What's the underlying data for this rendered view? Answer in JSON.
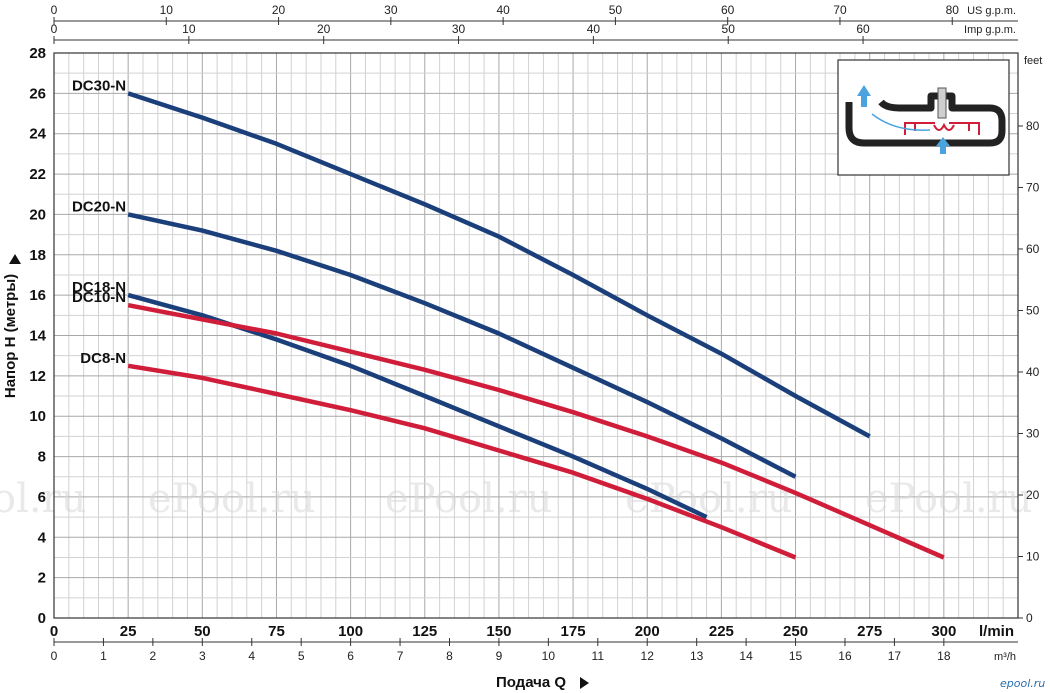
{
  "chart_data": {
    "type": "line",
    "xlabel": "Подача Q",
    "ylabel": "Напор H (метры)",
    "x_unit": "l/min",
    "xlim": [
      0,
      325
    ],
    "ylim": [
      0,
      28
    ],
    "x_ticks": [
      0,
      25,
      50,
      75,
      100,
      125,
      150,
      175,
      200,
      225,
      250,
      275,
      300
    ],
    "y_ticks": [
      0,
      2,
      4,
      6,
      8,
      10,
      12,
      14,
      16,
      18,
      20,
      22,
      24,
      26,
      28
    ],
    "grid": true,
    "secondary_axes": {
      "us_gpm": {
        "unit": "US g.p.m.",
        "ticks": [
          0,
          10,
          20,
          30,
          40,
          50,
          60,
          70,
          80
        ]
      },
      "imp_gpm": {
        "unit": "Imp g.p.m.",
        "ticks": [
          0,
          10,
          20,
          30,
          40,
          50,
          60
        ]
      },
      "feet": {
        "unit": "feet",
        "ticks": [
          0,
          10,
          20,
          30,
          40,
          50,
          60,
          70,
          80
        ]
      },
      "m3h": {
        "unit": "m³/h",
        "ticks": [
          0,
          1,
          2,
          3,
          4,
          5,
          6,
          7,
          8,
          9,
          10,
          11,
          12,
          13,
          14,
          15,
          16,
          17,
          18
        ]
      }
    },
    "series": [
      {
        "name": "DC30-N",
        "color": "#1b3f7a",
        "x": [
          25,
          50,
          75,
          100,
          125,
          150,
          175,
          200,
          225,
          250,
          275
        ],
        "y": [
          26.0,
          24.8,
          23.5,
          22.0,
          20.5,
          18.9,
          17.0,
          15.0,
          13.1,
          11.0,
          9.0
        ]
      },
      {
        "name": "DC20-N",
        "color": "#1b3f7a",
        "x": [
          25,
          50,
          75,
          100,
          125,
          150,
          175,
          200,
          225,
          250
        ],
        "y": [
          20.0,
          19.2,
          18.2,
          17.0,
          15.6,
          14.1,
          12.4,
          10.7,
          8.9,
          7.0
        ]
      },
      {
        "name": "DC18-N",
        "color": "#1b3f7a",
        "x": [
          25,
          50,
          75,
          100,
          125,
          150,
          175,
          200,
          220
        ],
        "y": [
          16.0,
          15.0,
          13.8,
          12.5,
          11.0,
          9.5,
          8.0,
          6.4,
          5.0
        ]
      },
      {
        "name": "DC10-N",
        "color": "#d01d3a",
        "x": [
          25,
          50,
          75,
          100,
          125,
          150,
          175,
          200,
          225,
          250,
          275,
          300
        ],
        "y": [
          15.5,
          14.8,
          14.1,
          13.2,
          12.3,
          11.3,
          10.2,
          9.0,
          7.7,
          6.2,
          4.6,
          3.0
        ]
      },
      {
        "name": "DC8-N",
        "color": "#d01d3a",
        "x": [
          25,
          50,
          75,
          100,
          125,
          150,
          175,
          200,
          225,
          250
        ],
        "y": [
          12.5,
          11.9,
          11.1,
          10.3,
          9.4,
          8.3,
          7.2,
          5.9,
          4.5,
          3.0
        ]
      }
    ]
  },
  "watermark": "ePool.ru",
  "watermark_partial": "ol.ru",
  "logo_text": "epool.ru",
  "inset": {
    "icon": "pump-cross-section-icon",
    "flow_color": "#4aa3df",
    "impeller_color": "#d01d3a"
  }
}
